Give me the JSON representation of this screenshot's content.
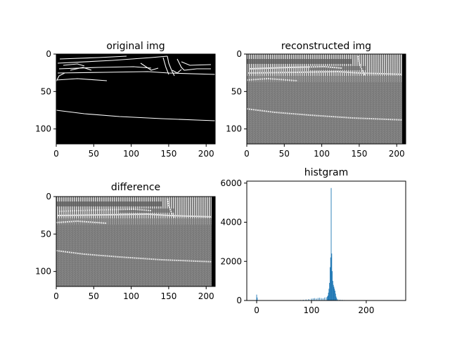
{
  "chart_data": [
    {
      "type": "heatmap",
      "title": "original img",
      "xticks": [
        0,
        50,
        100,
        150,
        200
      ],
      "yticks": [
        0,
        50,
        100
      ],
      "xlim": [
        0,
        212
      ],
      "ylim": [
        120,
        0
      ],
      "style": "white edge lines on black background",
      "colors": {
        "background": "#000000",
        "lines": "#ffffff"
      }
    },
    {
      "type": "heatmap",
      "title": "reconstructed img",
      "xticks": [
        0,
        50,
        100,
        150,
        200
      ],
      "yticks": [
        0,
        50,
        100
      ],
      "xlim": [
        0,
        212
      ],
      "ylim": [
        120,
        0
      ],
      "style": "grayscale noisy reconstruction",
      "colors": {
        "background": "#7e7e7e",
        "lines": "#e6e6e6"
      }
    },
    {
      "type": "heatmap",
      "title": "difference",
      "xticks": [
        0,
        50,
        100,
        150,
        200
      ],
      "yticks": [
        0,
        50,
        100
      ],
      "xlim": [
        0,
        212
      ],
      "ylim": [
        120,
        0
      ],
      "style": "grayscale difference image",
      "colors": {
        "background": "#7e7e7e",
        "lines": "#e6e6e6"
      }
    },
    {
      "type": "bar",
      "title": "histgram",
      "xticks": [
        0,
        100,
        200
      ],
      "yticks": [
        0,
        2000,
        4000,
        6000
      ],
      "xlim": [
        -18,
        272
      ],
      "ylim": [
        0,
        6100
      ],
      "color": "#1f77b4",
      "bins": [
        [
          0,
          300
        ],
        [
          1,
          150
        ],
        [
          60,
          10
        ],
        [
          70,
          15
        ],
        [
          80,
          25
        ],
        [
          85,
          35
        ],
        [
          90,
          50
        ],
        [
          95,
          70
        ],
        [
          100,
          95
        ],
        [
          103,
          110
        ],
        [
          106,
          120
        ],
        [
          109,
          100
        ],
        [
          112,
          130
        ],
        [
          115,
          140
        ],
        [
          118,
          120
        ],
        [
          121,
          110
        ],
        [
          124,
          150
        ],
        [
          127,
          160
        ],
        [
          129,
          200
        ],
        [
          130,
          250
        ],
        [
          131,
          400
        ],
        [
          132,
          600
        ],
        [
          133,
          900
        ],
        [
          134,
          1700
        ],
        [
          135,
          2200
        ],
        [
          136,
          5750
        ],
        [
          137,
          2400
        ],
        [
          138,
          1500
        ],
        [
          139,
          1000
        ],
        [
          140,
          800
        ],
        [
          141,
          700
        ],
        [
          142,
          600
        ],
        [
          143,
          500
        ],
        [
          144,
          350
        ],
        [
          145,
          200
        ],
        [
          146,
          120
        ],
        [
          148,
          60
        ],
        [
          152,
          40
        ],
        [
          156,
          30
        ],
        [
          160,
          20
        ],
        [
          165,
          10
        ],
        [
          170,
          5
        ]
      ]
    }
  ]
}
